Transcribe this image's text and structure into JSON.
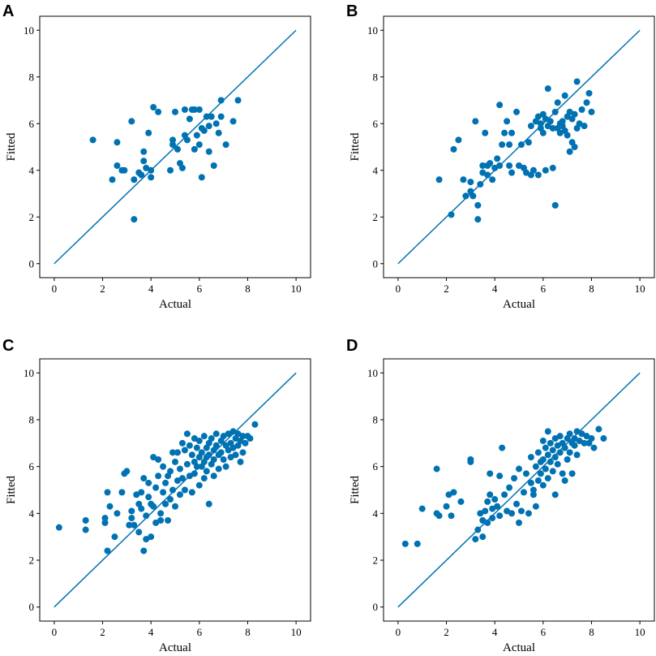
{
  "figure": {
    "marker_color": "#0072b2",
    "line_color": "#0072b2"
  },
  "chart_data": [
    {
      "panel": "A",
      "type": "scatter",
      "xlabel": "Actual",
      "ylabel": "Fitted",
      "xlim": [
        -0.6,
        10.6
      ],
      "ylim": [
        -0.6,
        10.6
      ],
      "xticks": [
        0,
        2,
        4,
        6,
        8,
        10
      ],
      "yticks": [
        0,
        2,
        4,
        6,
        8,
        10
      ],
      "reference_line": [
        [
          0,
          0
        ],
        [
          10,
          10
        ]
      ],
      "points": [
        [
          1.6,
          5.3
        ],
        [
          2.4,
          3.6
        ],
        [
          2.6,
          4.2
        ],
        [
          2.6,
          5.2
        ],
        [
          2.8,
          4.0
        ],
        [
          2.9,
          4.0
        ],
        [
          3.2,
          6.1
        ],
        [
          3.3,
          1.9
        ],
        [
          3.3,
          3.6
        ],
        [
          3.5,
          3.9
        ],
        [
          3.6,
          3.8
        ],
        [
          3.7,
          4.4
        ],
        [
          3.7,
          4.8
        ],
        [
          3.8,
          4.1
        ],
        [
          3.9,
          5.6
        ],
        [
          4.0,
          3.7
        ],
        [
          4.0,
          4.0
        ],
        [
          4.1,
          6.7
        ],
        [
          4.3,
          6.5
        ],
        [
          4.8,
          4.0
        ],
        [
          4.9,
          5.1
        ],
        [
          4.9,
          5.3
        ],
        [
          5.0,
          6.5
        ],
        [
          5.1,
          4.9
        ],
        [
          5.2,
          4.3
        ],
        [
          5.3,
          4.1
        ],
        [
          5.4,
          5.5
        ],
        [
          5.4,
          6.6
        ],
        [
          5.5,
          5.3
        ],
        [
          5.6,
          6.2
        ],
        [
          5.7,
          6.6
        ],
        [
          5.8,
          4.9
        ],
        [
          5.8,
          6.6
        ],
        [
          5.9,
          5.5
        ],
        [
          6.0,
          6.6
        ],
        [
          6.0,
          5.1
        ],
        [
          6.1,
          3.7
        ],
        [
          6.1,
          5.8
        ],
        [
          6.2,
          5.7
        ],
        [
          6.3,
          6.3
        ],
        [
          6.4,
          4.8
        ],
        [
          6.4,
          5.9
        ],
        [
          6.5,
          6.3
        ],
        [
          6.6,
          4.2
        ],
        [
          6.7,
          6.0
        ],
        [
          6.8,
          5.6
        ],
        [
          6.9,
          6.3
        ],
        [
          6.9,
          7.0
        ],
        [
          7.1,
          5.1
        ],
        [
          7.4,
          6.1
        ],
        [
          7.6,
          7.0
        ]
      ]
    },
    {
      "panel": "B",
      "type": "scatter",
      "xlabel": "Actual",
      "ylabel": "Fitted",
      "xlim": [
        -0.6,
        10.6
      ],
      "ylim": [
        -0.6,
        10.6
      ],
      "xticks": [
        0,
        2,
        4,
        6,
        8,
        10
      ],
      "yticks": [
        0,
        2,
        4,
        6,
        8,
        10
      ],
      "reference_line": [
        [
          0,
          0
        ],
        [
          10,
          10
        ]
      ],
      "points": [
        [
          1.7,
          3.6
        ],
        [
          2.2,
          2.1
        ],
        [
          2.3,
          4.9
        ],
        [
          2.5,
          5.3
        ],
        [
          2.7,
          3.6
        ],
        [
          2.8,
          2.9
        ],
        [
          3.0,
          3.5
        ],
        [
          3.0,
          3.1
        ],
        [
          3.1,
          2.9
        ],
        [
          3.2,
          6.1
        ],
        [
          3.3,
          1.9
        ],
        [
          3.3,
          2.5
        ],
        [
          3.4,
          3.4
        ],
        [
          3.5,
          3.9
        ],
        [
          3.5,
          4.2
        ],
        [
          3.6,
          5.6
        ],
        [
          3.7,
          3.8
        ],
        [
          3.7,
          4.2
        ],
        [
          3.8,
          4.3
        ],
        [
          3.9,
          3.6
        ],
        [
          4.0,
          4.1
        ],
        [
          4.1,
          4.5
        ],
        [
          4.2,
          6.8
        ],
        [
          4.2,
          4.2
        ],
        [
          4.3,
          5.1
        ],
        [
          4.4,
          5.6
        ],
        [
          4.5,
          6.1
        ],
        [
          4.6,
          5.1
        ],
        [
          4.6,
          4.2
        ],
        [
          4.7,
          5.6
        ],
        [
          4.7,
          3.9
        ],
        [
          4.9,
          6.5
        ],
        [
          5.0,
          4.2
        ],
        [
          5.1,
          5.1
        ],
        [
          5.2,
          4.1
        ],
        [
          5.3,
          3.9
        ],
        [
          5.4,
          5.2
        ],
        [
          5.5,
          5.9
        ],
        [
          5.5,
          3.8
        ],
        [
          5.6,
          4.0
        ],
        [
          5.7,
          6.1
        ],
        [
          5.8,
          6.3
        ],
        [
          5.8,
          3.8
        ],
        [
          5.9,
          5.8
        ],
        [
          5.9,
          6.0
        ],
        [
          6.0,
          6.4
        ],
        [
          6.0,
          5.6
        ],
        [
          6.1,
          6.2
        ],
        [
          6.1,
          4.0
        ],
        [
          6.2,
          7.5
        ],
        [
          6.2,
          5.9
        ],
        [
          6.3,
          6.1
        ],
        [
          6.4,
          5.8
        ],
        [
          6.4,
          4.1
        ],
        [
          6.5,
          2.5
        ],
        [
          6.5,
          6.5
        ],
        [
          6.6,
          5.8
        ],
        [
          6.6,
          6.9
        ],
        [
          6.7,
          6.0
        ],
        [
          6.7,
          5.6
        ],
        [
          6.8,
          6.1
        ],
        [
          6.8,
          5.9
        ],
        [
          6.9,
          7.2
        ],
        [
          6.9,
          5.7
        ],
        [
          7.0,
          6.3
        ],
        [
          7.0,
          5.5
        ],
        [
          7.1,
          4.8
        ],
        [
          7.1,
          6.5
        ],
        [
          7.2,
          5.2
        ],
        [
          7.2,
          6.2
        ],
        [
          7.3,
          5.0
        ],
        [
          7.3,
          6.4
        ],
        [
          7.4,
          7.8
        ],
        [
          7.4,
          5.8
        ],
        [
          7.5,
          6.0
        ],
        [
          7.6,
          6.6
        ],
        [
          7.7,
          5.9
        ],
        [
          7.8,
          6.9
        ],
        [
          7.9,
          7.3
        ],
        [
          8.0,
          6.5
        ]
      ]
    },
    {
      "panel": "C",
      "type": "scatter",
      "xlabel": "Actual",
      "ylabel": "Fitted",
      "xlim": [
        -0.6,
        10.6
      ],
      "ylim": [
        -0.6,
        10.6
      ],
      "xticks": [
        0,
        2,
        4,
        6,
        8,
        10
      ],
      "yticks": [
        0,
        2,
        4,
        6,
        8,
        10
      ],
      "reference_line": [
        [
          0,
          0
        ],
        [
          10,
          10
        ]
      ],
      "points": [
        [
          0.2,
          3.4
        ],
        [
          1.3,
          3.7
        ],
        [
          1.3,
          3.3
        ],
        [
          2.1,
          3.8
        ],
        [
          2.1,
          3.6
        ],
        [
          2.2,
          4.9
        ],
        [
          2.2,
          2.4
        ],
        [
          2.3,
          4.3
        ],
        [
          2.5,
          3.0
        ],
        [
          2.6,
          4.0
        ],
        [
          2.8,
          4.9
        ],
        [
          2.9,
          5.7
        ],
        [
          3.0,
          5.8
        ],
        [
          3.1,
          3.5
        ],
        [
          3.2,
          3.8
        ],
        [
          3.2,
          4.1
        ],
        [
          3.3,
          3.5
        ],
        [
          3.4,
          4.8
        ],
        [
          3.5,
          4.4
        ],
        [
          3.5,
          3.2
        ],
        [
          3.6,
          4.9
        ],
        [
          3.6,
          4.2
        ],
        [
          3.7,
          2.4
        ],
        [
          3.7,
          5.5
        ],
        [
          3.8,
          3.9
        ],
        [
          3.8,
          2.9
        ],
        [
          3.9,
          5.3
        ],
        [
          3.9,
          4.7
        ],
        [
          4.0,
          3.0
        ],
        [
          4.0,
          4.4
        ],
        [
          4.1,
          6.4
        ],
        [
          4.1,
          4.3
        ],
        [
          4.2,
          5.1
        ],
        [
          4.2,
          3.6
        ],
        [
          4.3,
          6.3
        ],
        [
          4.3,
          5.6
        ],
        [
          4.4,
          4.0
        ],
        [
          4.4,
          3.7
        ],
        [
          4.5,
          6.0
        ],
        [
          4.5,
          4.9
        ],
        [
          4.6,
          5.3
        ],
        [
          4.6,
          4.4
        ],
        [
          4.7,
          5.6
        ],
        [
          4.7,
          3.7
        ],
        [
          4.8,
          5.8
        ],
        [
          4.8,
          4.6
        ],
        [
          4.9,
          6.6
        ],
        [
          4.9,
          5.0
        ],
        [
          5.0,
          6.2
        ],
        [
          5.0,
          4.3
        ],
        [
          5.1,
          6.6
        ],
        [
          5.1,
          5.4
        ],
        [
          5.2,
          5.9
        ],
        [
          5.2,
          4.8
        ],
        [
          5.3,
          7.0
        ],
        [
          5.3,
          5.5
        ],
        [
          5.4,
          6.7
        ],
        [
          5.4,
          5.0
        ],
        [
          5.5,
          7.4
        ],
        [
          5.5,
          6.1
        ],
        [
          5.6,
          6.9
        ],
        [
          5.6,
          5.6
        ],
        [
          5.7,
          6.5
        ],
        [
          5.7,
          4.9
        ],
        [
          5.8,
          7.2
        ],
        [
          5.8,
          6.2
        ],
        [
          5.8,
          5.7
        ],
        [
          5.9,
          6.8
        ],
        [
          5.9,
          6.0
        ],
        [
          6.0,
          7.1
        ],
        [
          6.0,
          6.4
        ],
        [
          6.0,
          5.2
        ],
        [
          6.1,
          6.6
        ],
        [
          6.1,
          6.0
        ],
        [
          6.2,
          7.3
        ],
        [
          6.2,
          6.2
        ],
        [
          6.2,
          5.5
        ],
        [
          6.3,
          6.8
        ],
        [
          6.3,
          6.4
        ],
        [
          6.3,
          5.8
        ],
        [
          6.4,
          7.0
        ],
        [
          6.4,
          6.5
        ],
        [
          6.4,
          4.4
        ],
        [
          6.5,
          7.2
        ],
        [
          6.5,
          6.1
        ],
        [
          6.6,
          6.7
        ],
        [
          6.6,
          6.3
        ],
        [
          6.6,
          5.6
        ],
        [
          6.7,
          7.4
        ],
        [
          6.7,
          6.9
        ],
        [
          6.8,
          6.5
        ],
        [
          6.8,
          5.9
        ],
        [
          6.9,
          7.1
        ],
        [
          6.9,
          6.6
        ],
        [
          7.0,
          7.3
        ],
        [
          7.0,
          6.3
        ],
        [
          7.1,
          6.9
        ],
        [
          7.1,
          6.0
        ],
        [
          7.2,
          7.4
        ],
        [
          7.2,
          6.7
        ],
        [
          7.3,
          7.0
        ],
        [
          7.3,
          6.4
        ],
        [
          7.4,
          7.5
        ],
        [
          7.4,
          6.8
        ],
        [
          7.5,
          7.2
        ],
        [
          7.5,
          6.5
        ],
        [
          7.6,
          7.4
        ],
        [
          7.6,
          6.9
        ],
        [
          7.7,
          7.1
        ],
        [
          7.7,
          6.2
        ],
        [
          7.8,
          7.3
        ],
        [
          7.8,
          6.6
        ],
        [
          7.9,
          7.0
        ],
        [
          8.0,
          7.3
        ],
        [
          8.1,
          7.2
        ],
        [
          8.3,
          7.8
        ]
      ]
    },
    {
      "panel": "D",
      "type": "scatter",
      "xlabel": "Actual",
      "ylabel": "Fitted",
      "xlim": [
        -0.6,
        10.6
      ],
      "ylim": [
        -0.6,
        10.6
      ],
      "xticks": [
        0,
        2,
        4,
        6,
        8,
        10
      ],
      "yticks": [
        0,
        2,
        4,
        6,
        8,
        10
      ],
      "reference_line": [
        [
          0,
          0
        ],
        [
          10,
          10
        ]
      ],
      "points": [
        [
          0.3,
          2.7
        ],
        [
          0.8,
          2.7
        ],
        [
          1.0,
          4.2
        ],
        [
          1.6,
          4.0
        ],
        [
          1.6,
          5.9
        ],
        [
          1.7,
          3.9
        ],
        [
          2.0,
          4.3
        ],
        [
          2.1,
          4.8
        ],
        [
          2.2,
          3.9
        ],
        [
          2.3,
          4.9
        ],
        [
          2.6,
          4.5
        ],
        [
          3.0,
          6.3
        ],
        [
          3.0,
          6.2
        ],
        [
          3.2,
          2.9
        ],
        [
          3.3,
          3.3
        ],
        [
          3.4,
          4.0
        ],
        [
          3.5,
          3.7
        ],
        [
          3.5,
          3.0
        ],
        [
          3.6,
          4.1
        ],
        [
          3.7,
          4.5
        ],
        [
          3.7,
          3.6
        ],
        [
          3.8,
          5.7
        ],
        [
          3.8,
          4.8
        ],
        [
          3.9,
          3.8
        ],
        [
          3.9,
          4.2
        ],
        [
          4.0,
          4.6
        ],
        [
          4.1,
          4.3
        ],
        [
          4.2,
          5.6
        ],
        [
          4.2,
          3.9
        ],
        [
          4.3,
          6.8
        ],
        [
          4.4,
          4.8
        ],
        [
          4.5,
          4.1
        ],
        [
          4.6,
          5.1
        ],
        [
          4.7,
          4.0
        ],
        [
          4.8,
          5.5
        ],
        [
          4.9,
          4.4
        ],
        [
          5.0,
          3.6
        ],
        [
          5.0,
          5.9
        ],
        [
          5.1,
          4.1
        ],
        [
          5.2,
          4.9
        ],
        [
          5.3,
          5.7
        ],
        [
          5.4,
          4.0
        ],
        [
          5.5,
          5.3
        ],
        [
          5.5,
          6.4
        ],
        [
          5.6,
          5.0
        ],
        [
          5.6,
          4.8
        ],
        [
          5.7,
          6.0
        ],
        [
          5.7,
          4.3
        ],
        [
          5.8,
          6.6
        ],
        [
          5.8,
          5.4
        ],
        [
          5.9,
          6.2
        ],
        [
          5.9,
          5.7
        ],
        [
          6.0,
          7.1
        ],
        [
          6.0,
          6.3
        ],
        [
          6.0,
          5.2
        ],
        [
          6.1,
          6.8
        ],
        [
          6.1,
          5.9
        ],
        [
          6.2,
          7.5
        ],
        [
          6.2,
          6.5
        ],
        [
          6.2,
          5.5
        ],
        [
          6.3,
          7.0
        ],
        [
          6.3,
          6.2
        ],
        [
          6.4,
          6.7
        ],
        [
          6.4,
          5.8
        ],
        [
          6.5,
          7.2
        ],
        [
          6.5,
          6.4
        ],
        [
          6.5,
          4.8
        ],
        [
          6.6,
          6.9
        ],
        [
          6.6,
          6.1
        ],
        [
          6.7,
          7.3
        ],
        [
          6.7,
          6.6
        ],
        [
          6.8,
          5.7
        ],
        [
          6.8,
          7.0
        ],
        [
          6.9,
          6.8
        ],
        [
          6.9,
          5.4
        ],
        [
          7.0,
          7.2
        ],
        [
          7.0,
          6.3
        ],
        [
          7.1,
          7.4
        ],
        [
          7.1,
          6.6
        ],
        [
          7.2,
          7.0
        ],
        [
          7.2,
          5.7
        ],
        [
          7.3,
          7.2
        ],
        [
          7.3,
          6.9
        ],
        [
          7.4,
          7.5
        ],
        [
          7.4,
          6.5
        ],
        [
          7.5,
          7.1
        ],
        [
          7.6,
          7.4
        ],
        [
          7.7,
          7.0
        ],
        [
          7.8,
          7.3
        ],
        [
          7.9,
          7.0
        ],
        [
          8.0,
          7.2
        ],
        [
          8.1,
          6.8
        ],
        [
          8.3,
          7.6
        ],
        [
          8.5,
          7.2
        ]
      ]
    }
  ]
}
